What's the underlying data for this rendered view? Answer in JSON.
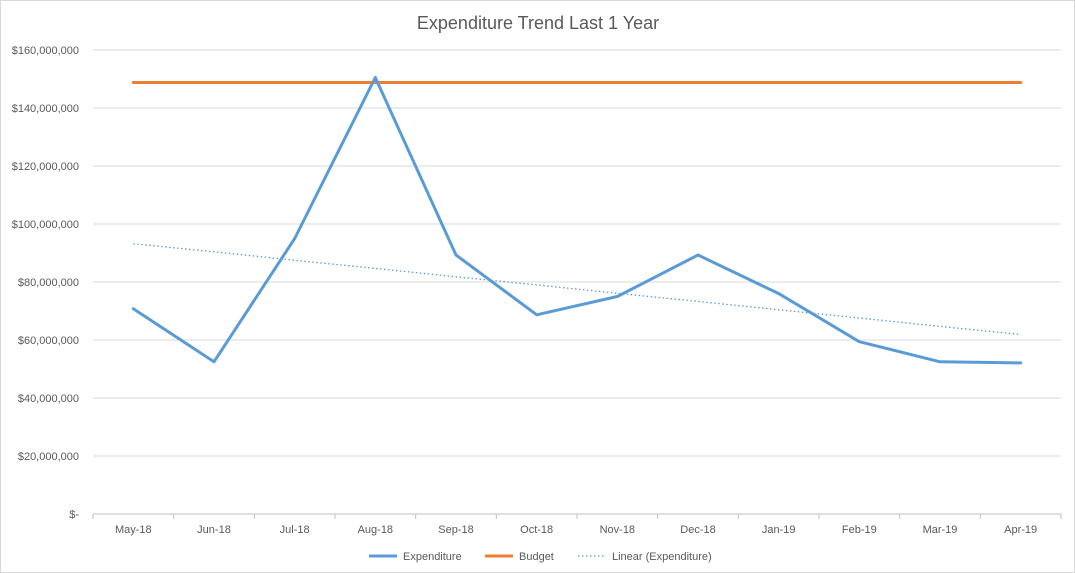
{
  "chart_data": {
    "type": "line",
    "title": "Expenditure Trend Last 1 Year",
    "xlabel": "",
    "ylabel": "",
    "categories": [
      "May-18",
      "Jun-18",
      "Jul-18",
      "Aug-18",
      "Sep-18",
      "Oct-18",
      "Nov-18",
      "Dec-18",
      "Jan-19",
      "Feb-19",
      "Mar-19",
      "Apr-19"
    ],
    "ylim": [
      0,
      160000000
    ],
    "yticks": [
      0,
      20000000,
      40000000,
      60000000,
      80000000,
      100000000,
      120000000,
      140000000,
      160000000
    ],
    "ytick_labels": [
      "$-",
      "$20,000,000",
      "$40,000,000",
      "$60,000,000",
      "$80,000,000",
      "$100,000,000",
      "$120,000,000",
      "$140,000,000",
      "$160,000,000"
    ],
    "grid": true,
    "legend_position": "bottom",
    "series": [
      {
        "name": "Expenditure",
        "color": "#5b9bd5",
        "style": "solid",
        "values": [
          70800000,
          52500000,
          95000000,
          150500000,
          89300000,
          68700000,
          75000000,
          89300000,
          76000000,
          59400000,
          52500000,
          52100000
        ]
      },
      {
        "name": "Budget",
        "color": "#ed7d31",
        "style": "solid",
        "values": [
          148800000,
          148800000,
          148800000,
          148800000,
          148800000,
          148800000,
          148800000,
          148800000,
          148800000,
          148800000,
          148800000,
          148800000
        ]
      },
      {
        "name": "Linear (Expenditure)",
        "color": "#5b9bd5",
        "style": "dotted",
        "values": [
          93200000,
          90400000,
          87500000,
          84700000,
          81800000,
          79000000,
          76100000,
          73300000,
          70400000,
          67600000,
          64700000,
          61900000
        ]
      }
    ]
  }
}
